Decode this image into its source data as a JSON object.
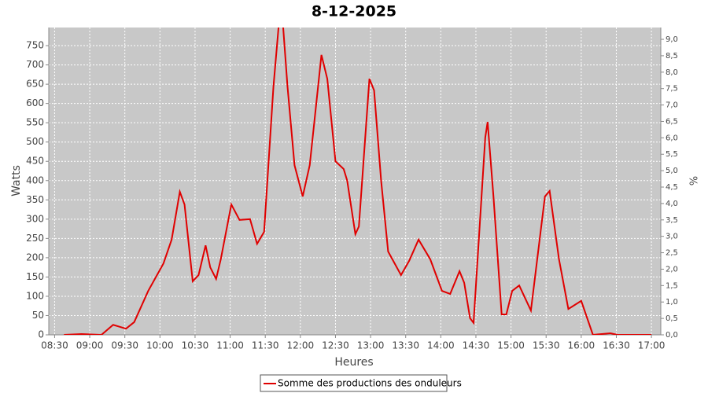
{
  "chart_data": {
    "type": "line",
    "title": "8-12-2025",
    "x_label": "Heures",
    "y_label": "Watts",
    "y2_label": "%",
    "x": [
      "08:38",
      "08:53",
      "09:10",
      "09:20",
      "09:31",
      "09:38",
      "09:50",
      "10:03",
      "10:10",
      "10:17",
      "10:21",
      "10:28",
      "10:33",
      "10:39",
      "10:43",
      "10:48",
      "10:52",
      "11:01",
      "11:08",
      "11:17",
      "11:23",
      "11:29",
      "11:37",
      "11:42",
      "11:45",
      "11:49",
      "11:55",
      "12:02",
      "12:08",
      "12:18",
      "12:23",
      "12:30",
      "12:37",
      "12:40",
      "12:47",
      "12:50",
      "12:59",
      "13:03",
      "13:09",
      "13:15",
      "13:26",
      "13:33",
      "13:41",
      "13:51",
      "14:01",
      "14:08",
      "14:16",
      "14:20",
      "14:25",
      "14:28",
      "14:38",
      "14:40",
      "14:45",
      "14:52",
      "14:56",
      "15:01",
      "15:07",
      "15:17",
      "15:29",
      "15:33",
      "15:41",
      "15:49",
      "16:00",
      "16:10",
      "16:25",
      "16:31",
      "17:00"
    ],
    "series": [
      {
        "name": "Somme des productions des onduleurs",
        "color": "#e00000",
        "values": [
          0,
          2,
          0,
          26,
          16,
          33,
          114,
          185,
          247,
          371,
          338,
          139,
          155,
          232,
          175,
          145,
          196,
          338,
          298,
          300,
          236,
          267,
          644,
          820,
          810,
          644,
          440,
          359,
          440,
          726,
          664,
          450,
          430,
          400,
          261,
          281,
          664,
          634,
          400,
          216,
          155,
          192,
          247,
          196,
          114,
          106,
          165,
          135,
          43,
          31,
          512,
          552,
          359,
          53,
          53,
          114,
          128,
          63,
          359,
          373,
          196,
          67,
          88,
          0,
          4,
          0,
          0
        ]
      }
    ],
    "xlim": [
      "08:25",
      "17:08"
    ],
    "xticks": [
      "08:30",
      "09:00",
      "09:30",
      "10:00",
      "10:30",
      "11:00",
      "11:30",
      "12:00",
      "12:30",
      "13:00",
      "13:30",
      "14:00",
      "14:30",
      "15:00",
      "15:30",
      "16:00",
      "16:30",
      "17:00"
    ],
    "ylim": [
      0,
      797
    ],
    "yticks": [
      0,
      50,
      100,
      150,
      200,
      250,
      300,
      350,
      400,
      450,
      500,
      550,
      600,
      650,
      700,
      750
    ],
    "y2lim": [
      0,
      9.36
    ],
    "y2ticks": [
      {
        "value": 0,
        "label": "0,0"
      },
      {
        "value": 0.5,
        "label": "0,5"
      },
      {
        "value": 1,
        "label": "1,0"
      },
      {
        "value": 1.5,
        "label": "1,5"
      },
      {
        "value": 2,
        "label": "2,0"
      },
      {
        "value": 2.5,
        "label": "2,5"
      },
      {
        "value": 3,
        "label": "3,0"
      },
      {
        "value": 3.5,
        "label": "3,5"
      },
      {
        "value": 4,
        "label": "4,0"
      },
      {
        "value": 4.5,
        "label": "4,5"
      },
      {
        "value": 5,
        "label": "5,0"
      },
      {
        "value": 5.5,
        "label": "5,5"
      },
      {
        "value": 6,
        "label": "6,0"
      },
      {
        "value": 6.5,
        "label": "6,5"
      },
      {
        "value": 7,
        "label": "7,0"
      },
      {
        "value": 7.5,
        "label": "7,5"
      },
      {
        "value": 8,
        "label": "8,0"
      },
      {
        "value": 8.5,
        "label": "8,5"
      },
      {
        "value": 9,
        "label": "9,0"
      }
    ],
    "grid": true,
    "legend": "bottom"
  }
}
